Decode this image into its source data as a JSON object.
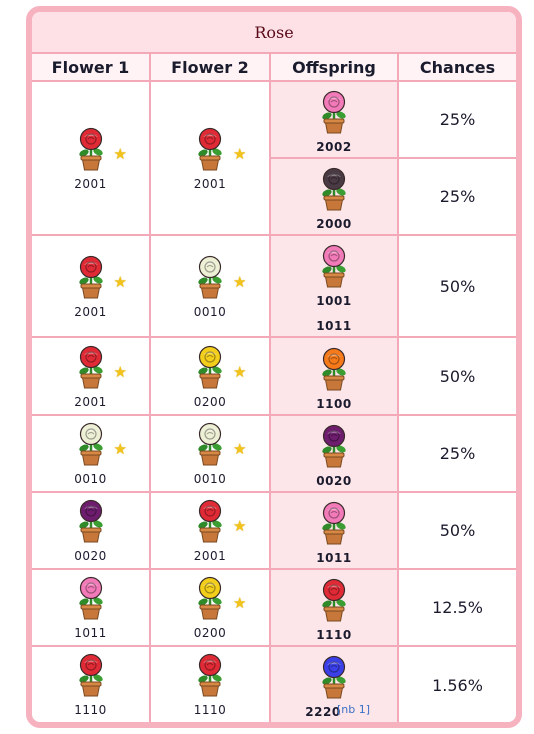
{
  "title": "Rose",
  "headers": [
    "Flower 1",
    "Flower 2",
    "Offspring",
    "Chances"
  ],
  "colors": {
    "red": "#e02a35",
    "pink": "#f27ab8",
    "black": "#4a3a44",
    "white": "#eef0d6",
    "yellow": "#f3cf1c",
    "orange": "#f77a1a",
    "purple": "#6e1d6e",
    "blue": "#3a3fe8"
  },
  "rows": [
    {
      "flower1": {
        "color": "red",
        "code": "2001",
        "star": true
      },
      "flower2": {
        "color": "red",
        "code": "2001",
        "star": true
      },
      "outcomes": [
        {
          "color": "pink",
          "codes": [
            "2002"
          ],
          "chance": "25%"
        },
        {
          "color": "black",
          "codes": [
            "2000"
          ],
          "chance": "25%"
        }
      ]
    },
    {
      "flower1": {
        "color": "red",
        "code": "2001",
        "star": true
      },
      "flower2": {
        "color": "white",
        "code": "0010",
        "star": true
      },
      "outcomes": [
        {
          "color": "pink",
          "codes": [
            "1001",
            "1011"
          ],
          "chance": "50%"
        }
      ]
    },
    {
      "flower1": {
        "color": "red",
        "code": "2001",
        "star": true
      },
      "flower2": {
        "color": "yellow",
        "code": "0200",
        "star": true
      },
      "outcomes": [
        {
          "color": "orange",
          "codes": [
            "1100"
          ],
          "chance": "50%"
        }
      ]
    },
    {
      "flower1": {
        "color": "white",
        "code": "0010",
        "star": true
      },
      "flower2": {
        "color": "white",
        "code": "0010",
        "star": true
      },
      "outcomes": [
        {
          "color": "purple",
          "codes": [
            "0020"
          ],
          "chance": "25%"
        }
      ]
    },
    {
      "flower1": {
        "color": "purple",
        "code": "0020",
        "star": false
      },
      "flower2": {
        "color": "red",
        "code": "2001",
        "star": true
      },
      "outcomes": [
        {
          "color": "pink",
          "codes": [
            "1011"
          ],
          "chance": "50%"
        }
      ]
    },
    {
      "flower1": {
        "color": "pink",
        "code": "1011",
        "star": false
      },
      "flower2": {
        "color": "yellow",
        "code": "0200",
        "star": true
      },
      "outcomes": [
        {
          "color": "red",
          "codes": [
            "1110"
          ],
          "chance": "12.5%"
        }
      ]
    },
    {
      "flower1": {
        "color": "red",
        "code": "1110",
        "star": false
      },
      "flower2": {
        "color": "red",
        "code": "1110",
        "star": false
      },
      "outcomes": [
        {
          "color": "blue",
          "codes": [
            "2220"
          ],
          "chance": "1.56%",
          "note": "[nb 1]"
        }
      ]
    }
  ]
}
